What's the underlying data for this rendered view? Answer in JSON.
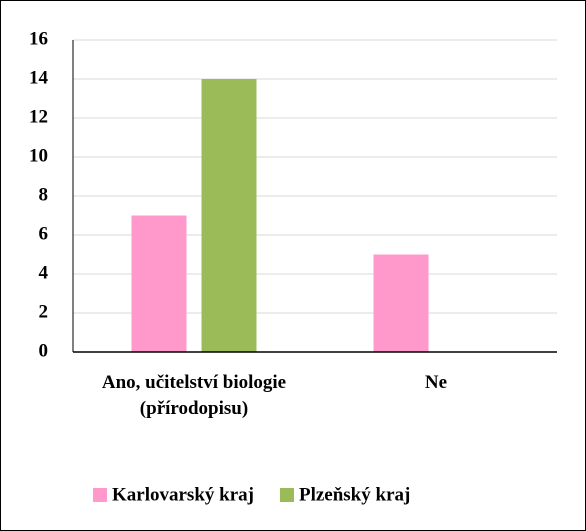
{
  "chart_data": {
    "type": "bar",
    "categories": [
      "Ano, učitelství biologie (přírodopisu)",
      "Ne"
    ],
    "series": [
      {
        "name": "Karlovarský kraj",
        "color": "#ff99cc",
        "values": [
          7,
          5
        ]
      },
      {
        "name": "Plzeňský kraj",
        "color": "#9bbb59",
        "values": [
          14,
          0
        ]
      }
    ],
    "ylim": [
      0,
      16
    ],
    "yticks": [
      0,
      2,
      4,
      6,
      8,
      10,
      12,
      14,
      16
    ],
    "grid": true,
    "legend": "bottom"
  }
}
